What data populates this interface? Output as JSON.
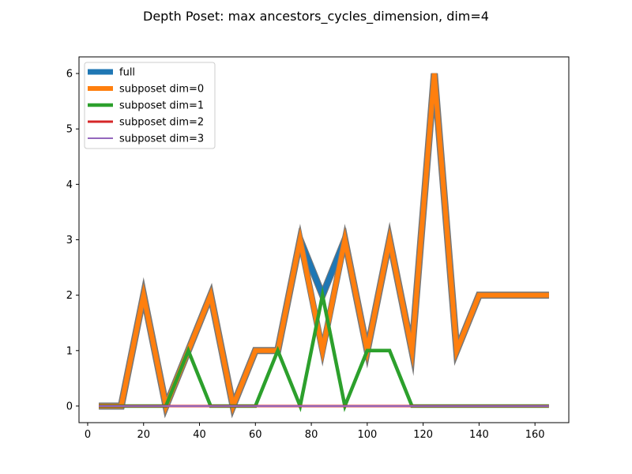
{
  "chart_data": {
    "type": "line",
    "title": "Depth Poset: max ancestors_cycles_dimension, dim=4",
    "xlabel": "",
    "ylabel": "",
    "xlim": [
      -3.1,
      172.1
    ],
    "ylim": [
      -0.3,
      6.3
    ],
    "xticks": [
      0,
      20,
      40,
      60,
      80,
      100,
      120,
      140,
      160
    ],
    "yticks": [
      0,
      1,
      2,
      3,
      4,
      5,
      6
    ],
    "grid": false,
    "legend_position": "upper-left",
    "series": [
      {
        "name": "full",
        "color": "#1f77b4",
        "x": [
          4,
          12,
          20,
          28,
          36,
          44,
          52,
          60,
          68,
          76,
          84,
          92,
          100,
          108,
          116,
          124,
          132,
          140,
          148,
          156,
          165
        ],
        "y": [
          0,
          0,
          2,
          0,
          1,
          2,
          0,
          1,
          1,
          3,
          2,
          3,
          1,
          3,
          1,
          6,
          1,
          2,
          2,
          2,
          2
        ]
      },
      {
        "name": "subposet dim=0",
        "color": "#ff7f0e",
        "x": [
          4,
          12,
          20,
          28,
          36,
          44,
          52,
          60,
          68,
          76,
          84,
          92,
          100,
          108,
          116,
          124,
          132,
          140,
          148,
          156,
          165
        ],
        "y": [
          0,
          0,
          2,
          0,
          1,
          2,
          0,
          1,
          1,
          3,
          1,
          3,
          1,
          3,
          1,
          6,
          1,
          2,
          2,
          2,
          2
        ]
      },
      {
        "name": "subposet dim=1",
        "color": "#2ca02c",
        "x": [
          4,
          12,
          20,
          28,
          36,
          44,
          52,
          60,
          68,
          76,
          84,
          92,
          100,
          108,
          116,
          124,
          132,
          140,
          148,
          156,
          165
        ],
        "y": [
          0,
          0,
          0,
          0,
          1,
          0,
          0,
          0,
          1,
          0,
          2,
          0,
          1,
          1,
          0,
          0,
          0,
          0,
          0,
          0,
          0
        ]
      },
      {
        "name": "subposet dim=2",
        "color": "#d62728",
        "x": [
          4,
          12,
          20,
          28,
          36,
          44,
          52,
          60,
          68,
          76,
          84,
          92,
          100,
          108,
          116,
          124,
          132,
          140,
          148,
          156,
          165
        ],
        "y": [
          0,
          0,
          0,
          0,
          0,
          0,
          0,
          0,
          0,
          0,
          0,
          0,
          0,
          0,
          0,
          0,
          0,
          0,
          0,
          0,
          0
        ]
      },
      {
        "name": "subposet dim=3",
        "color": "#9467bd",
        "x": [
          4,
          12,
          20,
          28,
          36,
          44,
          52,
          60,
          68,
          76,
          84,
          92,
          100,
          108,
          116,
          124,
          132,
          140,
          148,
          156,
          165
        ],
        "y": [
          0,
          0,
          0,
          0,
          0,
          0,
          0,
          0,
          0,
          0,
          0,
          0,
          0,
          0,
          0,
          0,
          0,
          0,
          0,
          0,
          0
        ]
      }
    ]
  }
}
